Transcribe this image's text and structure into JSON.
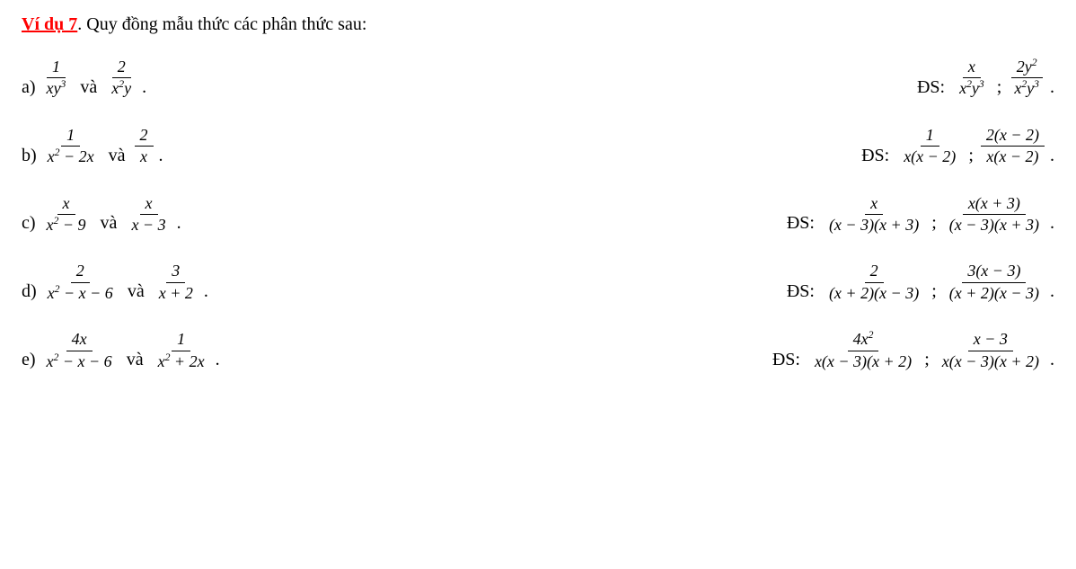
{
  "title": {
    "label": "Ví dụ 7",
    "text": ". Quy đồng mẫu thức các phân thức sau:"
  },
  "connectors": {
    "va": "và",
    "ds": "ĐS:",
    "sep": ";",
    "period": "."
  },
  "rows": [
    {
      "label": "a)",
      "left": [
        {
          "num": "1",
          "den": "xy<sup>3</sup>"
        },
        {
          "num": "2",
          "den": "x<sup>2</sup>y"
        }
      ],
      "right": [
        {
          "num": "x",
          "den": "x<sup>2</sup>y<sup>3</sup>"
        },
        {
          "num": "2y<sup>2</sup>",
          "den": "x<sup>2</sup>y<sup>3</sup>"
        }
      ]
    },
    {
      "label": "b)",
      "left": [
        {
          "num": "1",
          "den": "x<sup>2</sup> − 2x"
        },
        {
          "num": "2",
          "den": "x"
        }
      ],
      "right": [
        {
          "num": "1",
          "den": "x(x − 2)"
        },
        {
          "num": "2(x − 2)",
          "den": "x(x − 2)"
        }
      ]
    },
    {
      "label": "c)",
      "left": [
        {
          "num": "x",
          "den": "x<sup>2</sup> − 9"
        },
        {
          "num": "x",
          "den": "x − 3"
        }
      ],
      "right": [
        {
          "num": "x",
          "den": "(x − 3)(x + 3)"
        },
        {
          "num": "x(x + 3)",
          "den": "(x − 3)(x + 3)"
        }
      ]
    },
    {
      "label": "d)",
      "left": [
        {
          "num": "2",
          "den": "x<sup>2</sup> − x − 6"
        },
        {
          "num": "3",
          "den": "x + 2"
        }
      ],
      "right": [
        {
          "num": "2",
          "den": "(x + 2)(x − 3)"
        },
        {
          "num": "3(x − 3)",
          "den": "(x + 2)(x − 3)"
        }
      ]
    },
    {
      "label": "e)",
      "left": [
        {
          "num": "4x",
          "den": "x<sup>2</sup> − x − 6"
        },
        {
          "num": "1",
          "den": "x<sup>2</sup> + 2x"
        }
      ],
      "right": [
        {
          "num": "4x<sup>2</sup>",
          "den": "x(x − 3)(x + 2)"
        },
        {
          "num": "x − 3",
          "den": "x(x − 3)(x + 2)"
        }
      ]
    }
  ]
}
